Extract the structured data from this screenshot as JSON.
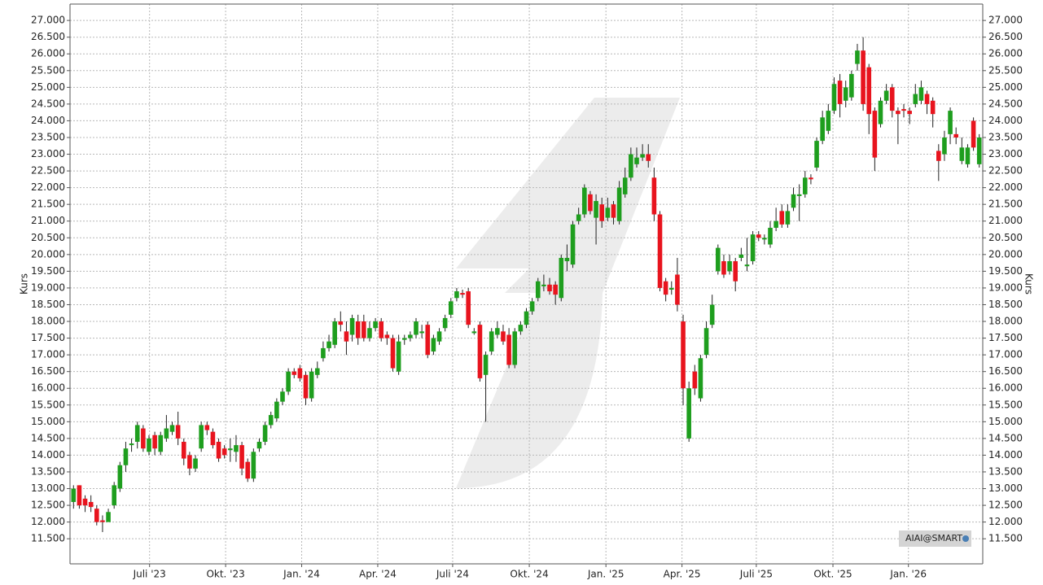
{
  "chart_data": {
    "type": "candlestick",
    "y_label": "Kurs",
    "y2_label": "Kurs",
    "watermark": "AIAI@SMART",
    "up_color": "#1e9e1e",
    "down_color": "#e8141e",
    "grid": true,
    "xlim": [
      -0.6,
      156.6
    ],
    "ylim": [
      10750,
      27490
    ],
    "xticks": [
      {
        "value": 13.1,
        "label": "Juli '23"
      },
      {
        "value": 26.2,
        "label": "Okt. '23"
      },
      {
        "value": 39.3,
        "label": "Jan. '24"
      },
      {
        "value": 52.4,
        "label": "Apr. '24"
      },
      {
        "value": 65.3,
        "label": "Juli '24"
      },
      {
        "value": 78.5,
        "label": "Okt. '24"
      },
      {
        "value": 91.7,
        "label": "Jan. '25"
      },
      {
        "value": 104.8,
        "label": "Apr. '25"
      },
      {
        "value": 117.6,
        "label": "Juli '25"
      },
      {
        "value": 130.8,
        "label": "Okt. '25"
      },
      {
        "value": 143.8,
        "label": "Jan. '26"
      }
    ],
    "yticks": [
      {
        "value": 11500,
        "label": "11.500"
      },
      {
        "value": 12000,
        "label": "12.000"
      },
      {
        "value": 12500,
        "label": "12.500"
      },
      {
        "value": 13000,
        "label": "13.000"
      },
      {
        "value": 13500,
        "label": "13.500"
      },
      {
        "value": 14000,
        "label": "14.000"
      },
      {
        "value": 14500,
        "label": "14.500"
      },
      {
        "value": 15000,
        "label": "15.000"
      },
      {
        "value": 15500,
        "label": "15.500"
      },
      {
        "value": 16000,
        "label": "16.000"
      },
      {
        "value": 16500,
        "label": "16.500"
      },
      {
        "value": 17000,
        "label": "17.000"
      },
      {
        "value": 17500,
        "label": "17.500"
      },
      {
        "value": 18000,
        "label": "18.000"
      },
      {
        "value": 18500,
        "label": "18.500"
      },
      {
        "value": 19000,
        "label": "19.000"
      },
      {
        "value": 19500,
        "label": "19.500"
      },
      {
        "value": 20000,
        "label": "20.000"
      },
      {
        "value": 20500,
        "label": "20.500"
      },
      {
        "value": 21000,
        "label": "21.000"
      },
      {
        "value": 21500,
        "label": "21.500"
      },
      {
        "value": 22000,
        "label": "22.000"
      },
      {
        "value": 22500,
        "label": "22.500"
      },
      {
        "value": 23000,
        "label": "23.000"
      },
      {
        "value": 23500,
        "label": "23.500"
      },
      {
        "value": 24000,
        "label": "24.000"
      },
      {
        "value": 24500,
        "label": "24.500"
      },
      {
        "value": 25000,
        "label": "25.000"
      },
      {
        "value": 25500,
        "label": "25.500"
      },
      {
        "value": 26000,
        "label": "26.000"
      },
      {
        "value": 26500,
        "label": "26.500"
      },
      {
        "value": 27000,
        "label": "27.000"
      }
    ],
    "open": [
      12600,
      13100,
      12700,
      12600,
      12400,
      12050,
      12000,
      12500,
      13000,
      13700,
      14300,
      14400,
      14800,
      14100,
      14600,
      14100,
      14500,
      14700,
      14900,
      14400,
      14000,
      13600,
      14200,
      14900,
      14700,
      14400,
      14200,
      14150,
      14100,
      14300,
      13800,
      13300,
      14200,
      14400,
      14900,
      15100,
      15600,
      15900,
      16500,
      16600,
      16400,
      15700,
      16400,
      16900,
      17200,
      17300,
      18000,
      17700,
      17600,
      18000,
      18000,
      17500,
      17800,
      18000,
      17600,
      17500,
      16500,
      17450,
      17500,
      17600,
      17650,
      17900,
      17100,
      17400,
      17800,
      18200,
      18700,
      18850,
      18900,
      17650,
      17900,
      16400,
      17100,
      17600,
      17700,
      17600,
      16700,
      17700,
      17900,
      18300,
      18700,
      19050,
      19100,
      19100,
      18700,
      19800,
      19700,
      21000,
      21200,
      21800,
      21100,
      21500,
      21100,
      21500,
      21000,
      21800,
      22300,
      22700,
      22900,
      23000,
      22300,
      21200,
      19200,
      18950,
      19400,
      18000,
      14500,
      16500,
      15700,
      17000,
      17900,
      19500,
      19800,
      19500,
      19800,
      19900,
      19650,
      19800,
      20600,
      20450,
      20300,
      20800,
      21300,
      20900,
      21400,
      21750,
      21800,
      22300,
      22600,
      23400,
      23700,
      24300,
      25200,
      24600,
      24700,
      25700,
      26100,
      25600,
      24300,
      23900,
      24600,
      25000,
      24300,
      24350,
      24300,
      24500,
      24600,
      24800,
      24600,
      23100,
      23000,
      23600,
      23600,
      22800,
      22700,
      24000,
      22700
    ],
    "high": [
      13100,
      13100,
      12800,
      12800,
      12500,
      12200,
      12400,
      13200,
      13800,
      14400,
      14500,
      15000,
      14900,
      14600,
      14700,
      14700,
      15200,
      15000,
      15300,
      14500,
      14100,
      14000,
      15000,
      15000,
      14800,
      14500,
      14300,
      14500,
      14600,
      14400,
      13900,
      14200,
      14500,
      15000,
      15300,
      15700,
      16000,
      16600,
      16600,
      16700,
      16500,
      16600,
      16800,
      17400,
      17600,
      18100,
      18300,
      18000,
      18200,
      18200,
      18200,
      18000,
      18100,
      18100,
      17700,
      17600,
      17600,
      17600,
      17700,
      18100,
      17900,
      18000,
      17600,
      17800,
      18200,
      18700,
      19000,
      18950,
      19000,
      17800,
      18000,
      17100,
      17800,
      18000,
      17900,
      17800,
      17800,
      18000,
      18400,
      18700,
      19300,
      19400,
      19300,
      19200,
      20000,
      20300,
      21000,
      21400,
      22100,
      21900,
      21800,
      21700,
      21700,
      21600,
      22200,
      22600,
      23200,
      23200,
      23300,
      23300,
      22600,
      21300,
      19300,
      19200,
      19900,
      18200,
      16200,
      16700,
      17000,
      18000,
      18800,
      20300,
      20000,
      20000,
      19900,
      20200,
      20500,
      20700,
      20700,
      20600,
      21000,
      21400,
      21500,
      21500,
      22000,
      22100,
      22500,
      22400,
      23500,
      24300,
      24500,
      25300,
      25400,
      25200,
      25500,
      26300,
      26500,
      25700,
      24400,
      24700,
      25100,
      25100,
      24400,
      24500,
      24400,
      25100,
      25200,
      24900,
      24700,
      23300,
      23700,
      24400,
      23800,
      23500,
      23300,
      24100,
      23600
    ],
    "low": [
      12400,
      12400,
      12300,
      12300,
      11900,
      11700,
      12100,
      12400,
      12900,
      13500,
      14100,
      14200,
      14100,
      14000,
      14000,
      14000,
      14400,
      14600,
      14300,
      13700,
      13400,
      13500,
      14100,
      14600,
      14200,
      13800,
      13900,
      13800,
      13800,
      13400,
      13200,
      13200,
      14100,
      14300,
      14800,
      15000,
      15500,
      15800,
      16300,
      16200,
      15500,
      15600,
      16300,
      16800,
      17100,
      17200,
      17700,
      17000,
      17400,
      17300,
      17400,
      17400,
      17700,
      17400,
      17300,
      16500,
      16400,
      17300,
      17400,
      17500,
      17500,
      16900,
      17000,
      17300,
      17700,
      18100,
      18600,
      18700,
      17800,
      17600,
      16200,
      15000,
      17000,
      17500,
      17300,
      16600,
      16600,
      17600,
      17800,
      18200,
      18600,
      18900,
      18800,
      18500,
      18600,
      19500,
      19600,
      20900,
      21100,
      21200,
      20300,
      20800,
      21000,
      20900,
      20900,
      21700,
      22200,
      22600,
      22800,
      22600,
      21000,
      18900,
      18600,
      18800,
      18300,
      15500,
      14400,
      15800,
      15600,
      16900,
      17800,
      19400,
      19300,
      19400,
      18900,
      19800,
      19500,
      19700,
      20400,
      20300,
      20200,
      20700,
      20800,
      20800,
      21300,
      21000,
      21700,
      22100,
      22500,
      23300,
      23600,
      24200,
      24100,
      24400,
      24600,
      25500,
      24300,
      23600,
      22500,
      23800,
      24500,
      24100,
      23300,
      24100,
      23900,
      24400,
      24500,
      24200,
      23800,
      22200,
      22800,
      23300,
      23300,
      22700,
      22600,
      23100,
      22600
    ],
    "close": [
      13000,
      12500,
      12500,
      12450,
      12000,
      12000,
      12300,
      13100,
      13700,
      14200,
      14350,
      14900,
      14200,
      14500,
      14200,
      14600,
      14800,
      14900,
      14500,
      13900,
      13600,
      13900,
      14900,
      14750,
      14300,
      13900,
      14000,
      14200,
      14300,
      13600,
      13300,
      14100,
      14400,
      14900,
      15200,
      15600,
      15900,
      16500,
      16400,
      16300,
      15700,
      16500,
      16600,
      17200,
      17400,
      18000,
      17900,
      17400,
      18100,
      17500,
      17500,
      17800,
      18000,
      17500,
      17500,
      16600,
      17400,
      17500,
      17600,
      18000,
      17700,
      17000,
      17500,
      17700,
      18100,
      18600,
      18900,
      18800,
      17900,
      17700,
      16300,
      17000,
      17700,
      17800,
      17400,
      16700,
      17700,
      17900,
      18300,
      18600,
      19200,
      19100,
      18900,
      18800,
      19900,
      19900,
      20900,
      21200,
      22000,
      21300,
      21600,
      21000,
      21400,
      21100,
      22000,
      22300,
      23000,
      22900,
      23000,
      22800,
      21200,
      19000,
      18800,
      19000,
      18500,
      16000,
      16000,
      16000,
      16900,
      17800,
      18500,
      20200,
      19400,
      19800,
      19200,
      20000,
      19700,
      20600,
      20500,
      20500,
      20800,
      21000,
      20900,
      21300,
      21800,
      21800,
      22300,
      22250,
      23400,
      24100,
      24300,
      25100,
      24500,
      25000,
      25400,
      26100,
      24500,
      24200,
      22900,
      24600,
      24900,
      24300,
      24200,
      24300,
      24200,
      24800,
      25000,
      24500,
      24200,
      22800,
      23500,
      24300,
      23500,
      23200,
      23200,
      23200,
      23500
    ]
  }
}
